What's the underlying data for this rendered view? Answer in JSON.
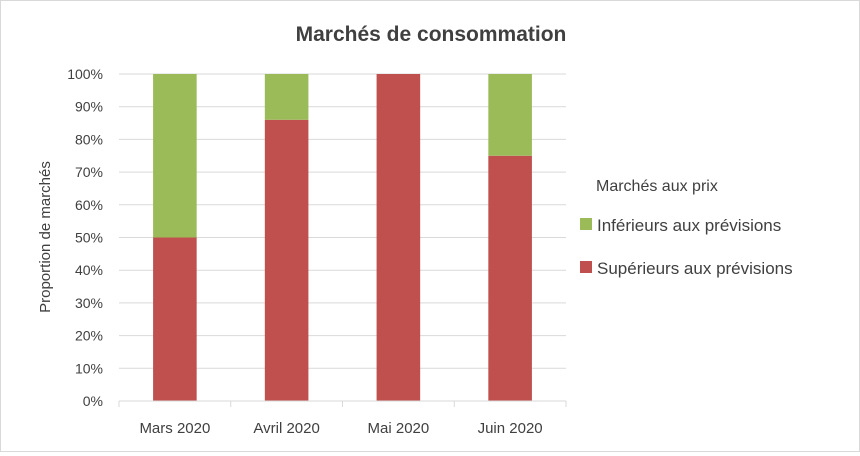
{
  "chart_data": {
    "type": "bar",
    "stacked": true,
    "title": "Marchés de consommation",
    "xlabel": "",
    "ylabel": "Proportion de marchés",
    "categories": [
      "Mars 2020",
      "Avril 2020",
      "Mai 2020",
      "Juin 2020"
    ],
    "series": [
      {
        "name": "Supérieurs aux prévisions",
        "color": "#C0504D",
        "values": [
          50,
          86,
          100,
          75
        ]
      },
      {
        "name": "Inférieurs aux prévisions",
        "color": "#9BBB59",
        "values": [
          50,
          14,
          0,
          25
        ]
      }
    ],
    "ylim": [
      0,
      100
    ],
    "yticks": [
      0,
      10,
      20,
      30,
      40,
      50,
      60,
      70,
      80,
      90,
      100
    ],
    "ytick_labels": [
      "0%",
      "10%",
      "20%",
      "30%",
      "40%",
      "50%",
      "60%",
      "70%",
      "80%",
      "90%",
      "100%"
    ],
    "grid": true,
    "legend": {
      "title": "Marchés aux prix",
      "placement": "right",
      "order": [
        "Inférieurs aux prévisions",
        "Supérieurs aux prévisions"
      ]
    }
  }
}
